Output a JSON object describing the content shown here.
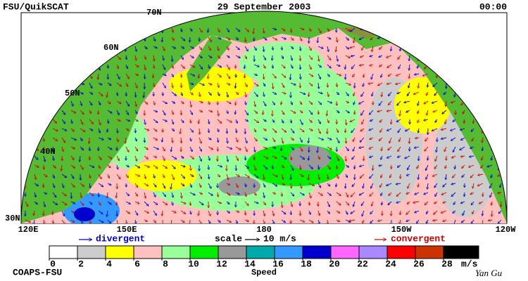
{
  "header": {
    "left": "FSU/QuikSCAT",
    "center": "29 September 2003",
    "right": "00:00"
  },
  "map": {
    "lat_labels": [
      "70N",
      "60N",
      "50N",
      "40N",
      "30N"
    ],
    "lon_labels": [
      "120E",
      "150E",
      "180",
      "150W",
      "120W"
    ]
  },
  "legend": {
    "divergent": "divergent",
    "scale": "scale",
    "scale_value": "10 m/s",
    "convergent": "convergent",
    "divergent_color": "#0000cc",
    "convergent_color": "#cc0000"
  },
  "colorbar": {
    "ticks": [
      0,
      2,
      4,
      6,
      8,
      10,
      12,
      14,
      16,
      18,
      20,
      22,
      24,
      26,
      28
    ],
    "unit": "m/s",
    "label": "Speed",
    "colors": [
      "#ffffff",
      "#cccccc",
      "#ffff00",
      "#ffc0c0",
      "#99ff99",
      "#00ee00",
      "#999999",
      "#00aaaa",
      "#3399ff",
      "#0000cc",
      "#ff66ff",
      "#aa88ff",
      "#ff0000",
      "#cc3300",
      "#000000"
    ]
  },
  "footer": {
    "left": "COAPS-FSU",
    "right": "Yan Gu"
  }
}
